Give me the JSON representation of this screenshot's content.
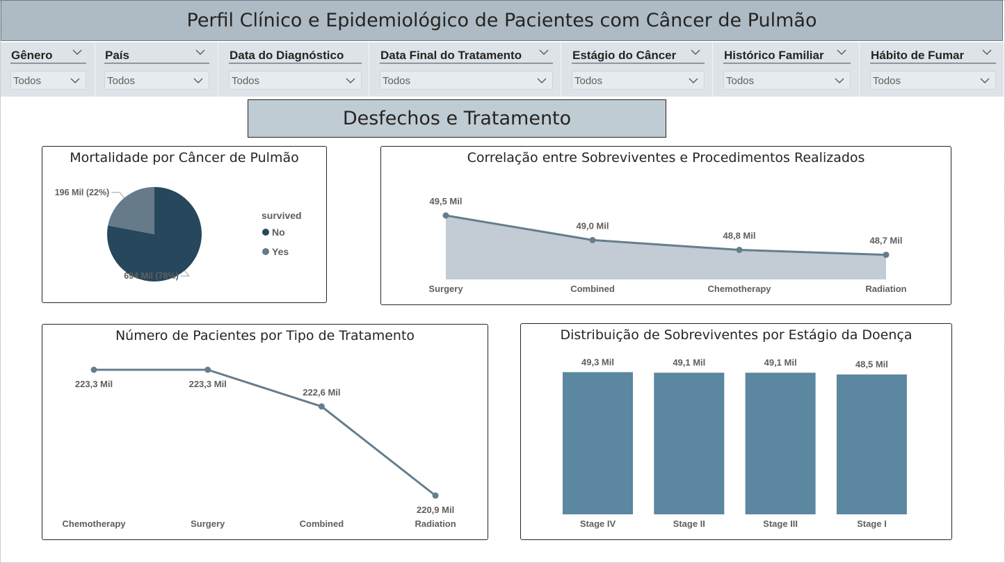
{
  "header": {
    "title": "Perfil Clínico e Epidemiológico de Pacientes com Câncer de Pulmão"
  },
  "filters": [
    {
      "label": "Gênero",
      "value": "Todos"
    },
    {
      "label": "País",
      "value": "Todos"
    },
    {
      "label": "Data do Diagnóstico",
      "value": "Todos"
    },
    {
      "label": "Data Final do Tratamento",
      "value": "Todos"
    },
    {
      "label": "Estágio do Câncer",
      "value": "Todos"
    },
    {
      "label": "Histórico Familiar",
      "value": "Todos"
    },
    {
      "label": "Hábito de Fumar",
      "value": "Todos"
    }
  ],
  "section": {
    "title": "Desfechos e Tratamento"
  },
  "colors": {
    "dark": "#26475c",
    "slate": "#667b8a",
    "area": "#c3cbd4",
    "bar": "#5b87a0",
    "line": "#657d8c"
  },
  "chart_data": [
    {
      "id": "mortality",
      "type": "pie",
      "title": "Mortalidade por Câncer de Pulmão",
      "legend_title": "survived",
      "legend_position": "right",
      "slices": [
        {
          "name": "No",
          "value": 694,
          "label": "694 Mil (78%)"
        },
        {
          "name": "Yes",
          "value": 196,
          "label": "196 Mil (22%)"
        }
      ]
    },
    {
      "id": "survivors-procedures",
      "type": "area",
      "title": "Correlação entre Sobreviventes e Procedimentos Realizados",
      "categories": [
        "Surgery",
        "Combined",
        "Chemotherapy",
        "Radiation"
      ],
      "values": [
        49.5,
        49.0,
        48.8,
        48.7
      ],
      "labels": [
        "49,5 Mil",
        "49,0 Mil",
        "48,8 Mil",
        "48,7 Mil"
      ]
    },
    {
      "id": "patients-treatment",
      "type": "line",
      "title": "Número de Pacientes por Tipo de Tratamento",
      "categories": [
        "Chemotherapy",
        "Surgery",
        "Combined",
        "Radiation"
      ],
      "values": [
        223.3,
        223.3,
        222.6,
        220.9
      ],
      "labels": [
        "223,3 Mil",
        "223,3 Mil",
        "222,6 Mil",
        "220,9 Mil"
      ]
    },
    {
      "id": "survivors-stage",
      "type": "bar",
      "title": "Distribuição de Sobreviventes por Estágio da Doença",
      "categories": [
        "Stage IV",
        "Stage II",
        "Stage III",
        "Stage I"
      ],
      "values": [
        49.3,
        49.1,
        49.1,
        48.5
      ],
      "labels": [
        "49,3 Mil",
        "49,1 Mil",
        "49,1 Mil",
        "48,5 Mil"
      ]
    }
  ]
}
